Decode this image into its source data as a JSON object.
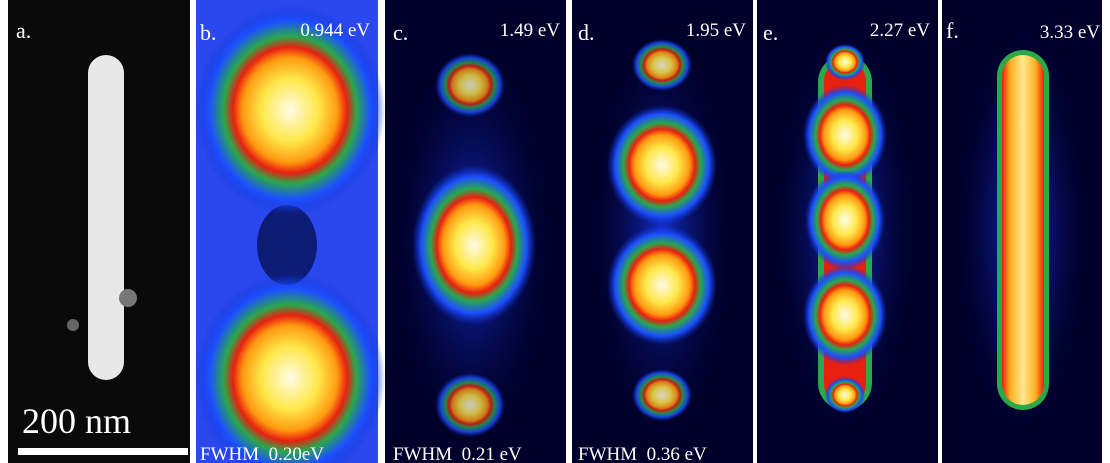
{
  "panels": [
    {
      "label": "a.",
      "scale_bar": "200 nm"
    },
    {
      "label": "b.",
      "energy": "0.944 eV",
      "fwhm": "FWHM  0.20eV"
    },
    {
      "label": "c.",
      "energy": "1.49 eV",
      "fwhm": "FWHM  0.21 eV"
    },
    {
      "label": "d.",
      "energy": "1.95 eV",
      "fwhm": "FWHM  0.36 eV"
    },
    {
      "label": "e.",
      "energy": "2.27 eV"
    },
    {
      "label": "f.",
      "energy": "3.33 eV"
    }
  ]
}
